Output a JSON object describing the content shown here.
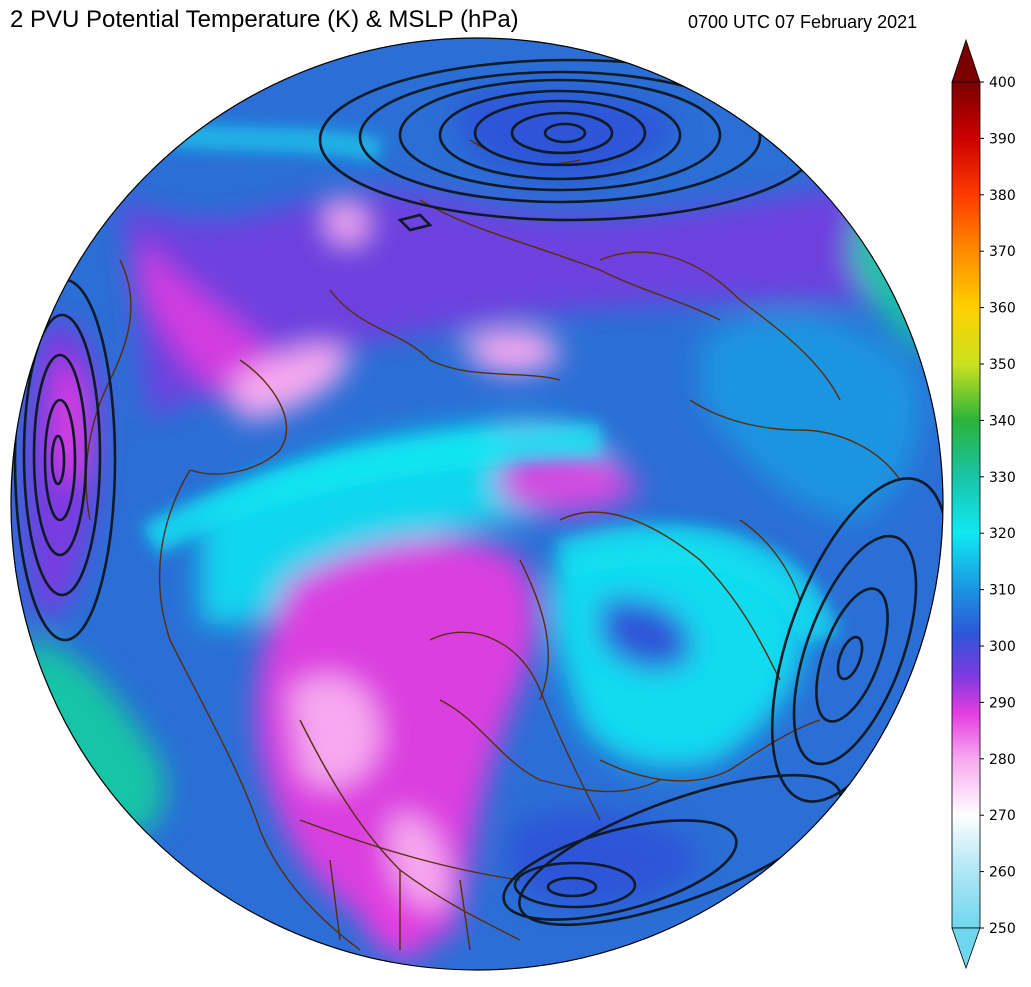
{
  "header": {
    "title": "2 PVU Potential Temperature (K) & MSLP (hPa)",
    "timestamp": "0700 UTC 07 February 2021"
  },
  "colorbar": {
    "ticks": [
      "400",
      "390",
      "380",
      "370",
      "360",
      "350",
      "340",
      "330",
      "320",
      "310",
      "300",
      "290",
      "280",
      "270",
      "260",
      "250"
    ],
    "stops": [
      {
        "value": 250,
        "color": "#6fd6ee"
      },
      {
        "value": 262,
        "color": "#bdeaf6"
      },
      {
        "value": 270,
        "color": "#ffffff"
      },
      {
        "value": 280,
        "color": "#f7a8ef"
      },
      {
        "value": 288,
        "color": "#e53de0"
      },
      {
        "value": 295,
        "color": "#7a3ae0"
      },
      {
        "value": 302,
        "color": "#2f55d8"
      },
      {
        "value": 310,
        "color": "#1a95e0"
      },
      {
        "value": 320,
        "color": "#10e8f2"
      },
      {
        "value": 330,
        "color": "#19c4a6"
      },
      {
        "value": 340,
        "color": "#2ab33a"
      },
      {
        "value": 350,
        "color": "#c9e21f"
      },
      {
        "value": 360,
        "color": "#ffd000"
      },
      {
        "value": 370,
        "color": "#ff8a00"
      },
      {
        "value": 380,
        "color": "#ff3a00"
      },
      {
        "value": 390,
        "color": "#cc0000"
      },
      {
        "value": 400,
        "color": "#7a0000"
      }
    ]
  },
  "map": {
    "projection": "orthographic",
    "ocean_base_color": "#1f8fd8",
    "coastline_color": "#5a2d0c",
    "isobar_color": "#0e1b26"
  }
}
